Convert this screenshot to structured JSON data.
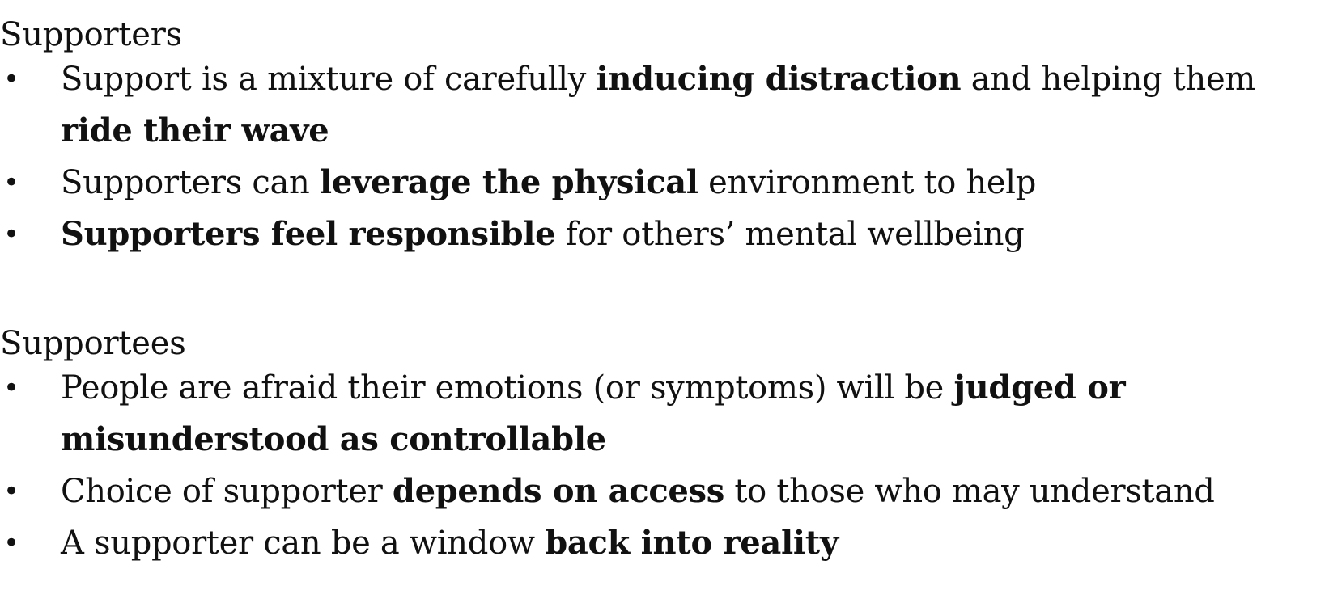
{
  "sections": [
    {
      "heading": "Supporters",
      "items": [
        {
          "parts": [
            {
              "text": "Support is a mixture of carefully ",
              "bold": false
            },
            {
              "text": "inducing distraction",
              "bold": true
            },
            {
              "text": " and helping them ",
              "bold": false
            },
            {
              "text": "ride their wave",
              "bold": true
            }
          ]
        },
        {
          "parts": [
            {
              "text": "Supporters can ",
              "bold": false
            },
            {
              "text": "leverage the physical",
              "bold": true
            },
            {
              "text": " environment to help",
              "bold": false
            }
          ]
        },
        {
          "parts": [
            {
              "text": "Supporters feel responsible",
              "bold": true
            },
            {
              "text": " for others’ mental wellbeing",
              "bold": false
            }
          ]
        }
      ]
    },
    {
      "heading": "Supportees",
      "items": [
        {
          "parts": [
            {
              "text": "People are afraid their emotions (or symptoms) will be ",
              "bold": false
            },
            {
              "text": "judged or misunderstood as controllable",
              "bold": true
            }
          ]
        },
        {
          "parts": [
            {
              "text": "Choice of supporter ",
              "bold": false
            },
            {
              "text": "depends on access",
              "bold": true
            },
            {
              "text": " to those who may understand",
              "bold": false
            }
          ]
        },
        {
          "parts": [
            {
              "text": "A supporter can be a window ",
              "bold": false
            },
            {
              "text": "back into reality",
              "bold": true
            }
          ]
        }
      ]
    }
  ],
  "bullet_glyph": "•"
}
